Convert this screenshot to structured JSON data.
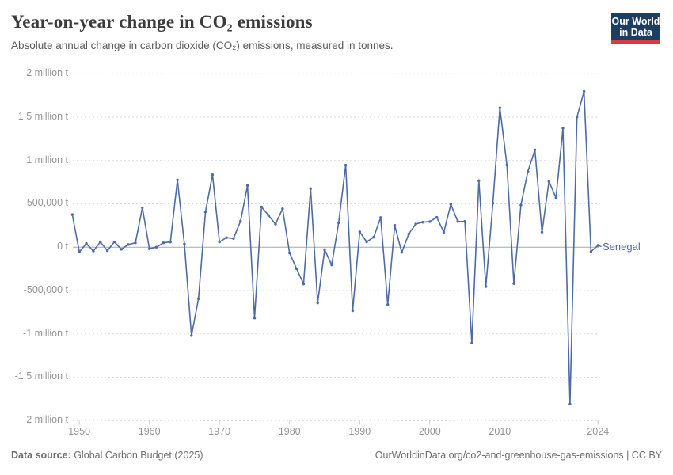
{
  "header": {
    "title": "Year-on-year change in CO₂ emissions",
    "subtitle": "Absolute annual change in carbon dioxide (CO₂) emissions, measured in tonnes.",
    "logo": {
      "line1": "Our World",
      "line2": "in Data"
    }
  },
  "chart_data": {
    "type": "line",
    "title": "Year-on-year change in CO₂ emissions",
    "series_label": "Senegal",
    "unit": "t",
    "ylim": [
      -2000000,
      2000000
    ],
    "xlim": [
      1949,
      2025
    ],
    "grid": true,
    "legend_position": "end-of-line",
    "x": [
      1949,
      1950,
      1951,
      1952,
      1953,
      1954,
      1955,
      1956,
      1957,
      1958,
      1959,
      1960,
      1961,
      1962,
      1963,
      1964,
      1965,
      1966,
      1967,
      1968,
      1969,
      1970,
      1971,
      1972,
      1973,
      1974,
      1975,
      1976,
      1977,
      1978,
      1979,
      1980,
      1981,
      1982,
      1983,
      1984,
      1985,
      1986,
      1987,
      1988,
      1989,
      1990,
      1991,
      1992,
      1993,
      1994,
      1995,
      1996,
      1997,
      1998,
      1999,
      2000,
      2001,
      2002,
      2003,
      2004,
      2005,
      2006,
      2007,
      2008,
      2009,
      2010,
      2011,
      2012,
      2013,
      2014,
      2015,
      2016,
      2017,
      2018,
      2019,
      2020,
      2021,
      2022,
      2023,
      2024
    ],
    "values": [
      375000,
      -55000,
      42000,
      -45000,
      60000,
      -40000,
      60000,
      -25000,
      30000,
      50000,
      455000,
      -18000,
      0,
      50000,
      60000,
      775000,
      36000,
      -1020000,
      -594000,
      406000,
      836000,
      60000,
      110000,
      100000,
      300000,
      710000,
      -818000,
      464000,
      366000,
      266000,
      443000,
      -66000,
      -248000,
      -425000,
      676000,
      -643000,
      -30000,
      -205000,
      280000,
      945000,
      -733000,
      177000,
      61000,
      115000,
      342000,
      -663000,
      252000,
      -60000,
      152000,
      267000,
      288000,
      295000,
      343000,
      173000,
      495000,
      295000,
      297000,
      -1105000,
      767000,
      -455000,
      507000,
      1607000,
      948000,
      -420000,
      486000,
      873000,
      1122000,
      173000,
      758000,
      570000,
      1373000,
      -1810000,
      1500000,
      1797000,
      -51000,
      20000
    ],
    "y_ticks": [
      {
        "value": 2000000,
        "label": "2 million t"
      },
      {
        "value": 1500000,
        "label": "1.5 million t"
      },
      {
        "value": 1000000,
        "label": "1 million t"
      },
      {
        "value": 500000,
        "label": "500,000 t"
      },
      {
        "value": 0,
        "label": "0 t"
      },
      {
        "value": -500000,
        "label": "-500,000 t"
      },
      {
        "value": -1000000,
        "label": "-1 million t"
      },
      {
        "value": -1500000,
        "label": "-1.5 million t"
      },
      {
        "value": -2000000,
        "label": "-2 million t"
      }
    ],
    "x_ticks": [
      {
        "year": 1950,
        "label": "1950"
      },
      {
        "year": 1960,
        "label": "1960"
      },
      {
        "year": 1970,
        "label": "1970"
      },
      {
        "year": 1980,
        "label": "1980"
      },
      {
        "year": 1990,
        "label": "1990"
      },
      {
        "year": 2000,
        "label": "2000"
      },
      {
        "year": 2010,
        "label": "2010"
      },
      {
        "year": 2024,
        "label": "2024"
      }
    ]
  },
  "footer": {
    "source_label": "Data source:",
    "source_value": " Global Carbon Budget (2025)",
    "credit": "OurWorldinData.org/co2-and-greenhouse-gas-emissions | CC BY"
  },
  "colors": {
    "line": "#4d6ba5",
    "grid": "#d9d9d9",
    "zero_line": "#a8a8a8",
    "tick": "#c8c8c8",
    "tick_label": "#949494",
    "logo_bg": "#1d3d63",
    "logo_stripe": "#dc3a3c"
  }
}
